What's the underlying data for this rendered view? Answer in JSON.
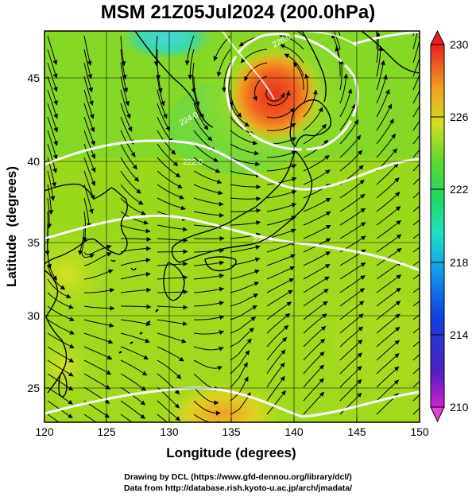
{
  "title": "MSM 21Z05Jul2024 (200.0hPa)",
  "x_axis": {
    "label": "Longitude (degrees)",
    "ticks": [
      "120",
      "125",
      "130",
      "135",
      "140",
      "145",
      "150"
    ]
  },
  "y_axis": {
    "label": "Latitude  (degrees)",
    "ticks": [
      "25",
      "30",
      "35",
      "40",
      "45"
    ]
  },
  "colorbar": {
    "ticks": [
      "230",
      "226",
      "222",
      "218",
      "214",
      "210"
    ],
    "min": 210,
    "max": 230
  },
  "contours": [
    {
      "label": "220.0"
    },
    {
      "label": "222.0"
    },
    {
      "label": "224.0"
    },
    {
      "label": "226.0"
    }
  ],
  "credits": {
    "line1": "Drawing by DCL (https://www.gfd-dennou.org/library/dcl/)",
    "line2": "Data from http://database.rish.kyoto-u.ac.jp/arch/jmadata/"
  },
  "colors": {
    "background_field": "#9ad81a",
    "high_center": "#f04020",
    "low_cyan": "#40d8b0",
    "contour": "#ffffff",
    "streamline": "#000000",
    "coastline": "#000000"
  }
}
